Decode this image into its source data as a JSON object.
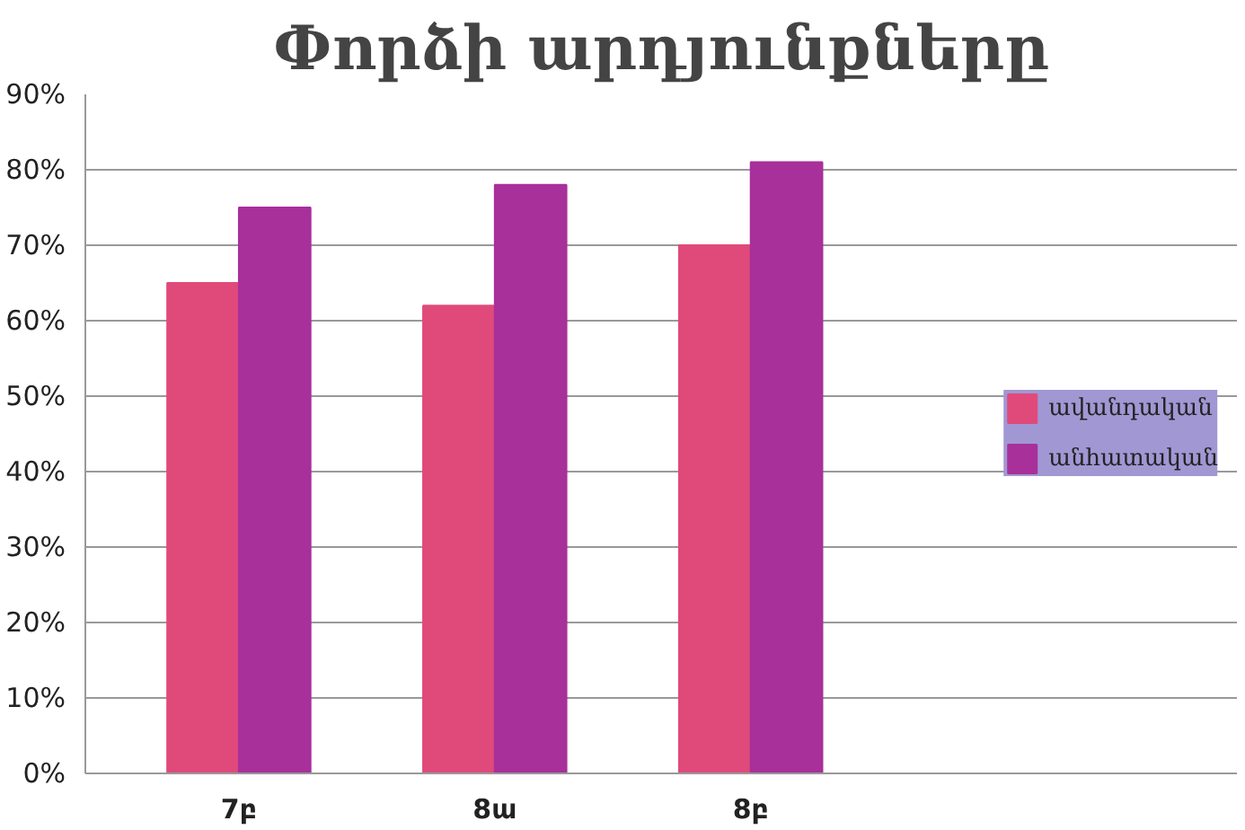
{
  "chart_data": {
    "type": "bar",
    "title": "Փորձի արդյունքները",
    "categories": [
      "7բ",
      "8ա",
      "8բ"
    ],
    "series": [
      {
        "name": "ավանդական",
        "color": "#e04a7a",
        "values": [
          65,
          62,
          70
        ]
      },
      {
        "name": "անհատական",
        "color": "#a8309a",
        "values": [
          75,
          78,
          81
        ]
      }
    ],
    "ylim": [
      0,
      90
    ],
    "yticks": [
      {
        "value": 0,
        "label": "0%"
      },
      {
        "value": 10,
        "label": "10%"
      },
      {
        "value": 20,
        "label": "20%"
      },
      {
        "value": 30,
        "label": "30%"
      },
      {
        "value": 40,
        "label": "40%"
      },
      {
        "value": 50,
        "label": "50%"
      },
      {
        "value": 60,
        "label": "60%"
      },
      {
        "value": 70,
        "label": "70%"
      },
      {
        "value": 80,
        "label": "80%"
      },
      {
        "value": 90,
        "label": "90%"
      }
    ],
    "grid": "y",
    "legend": "right"
  }
}
